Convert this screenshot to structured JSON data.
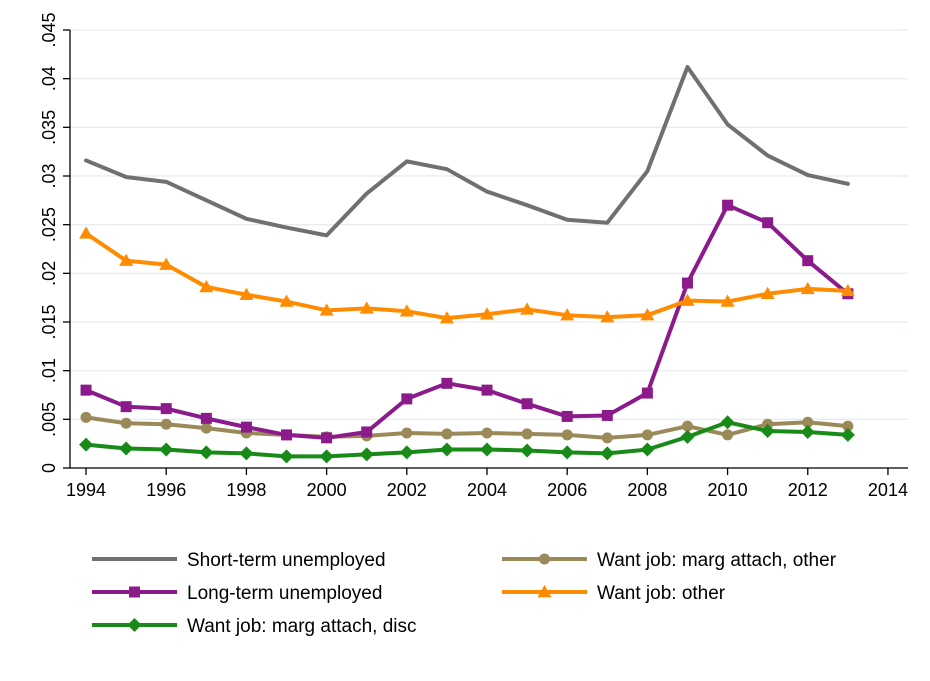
{
  "chart_data": {
    "type": "line",
    "title": "",
    "xlabel": "",
    "ylabel": "",
    "xlim": [
      1993.6,
      2014.5
    ],
    "ylim": [
      0,
      0.045
    ],
    "x_ticks": [
      1994,
      1996,
      1998,
      2000,
      2002,
      2004,
      2006,
      2008,
      2010,
      2012,
      2014
    ],
    "x_tick_labels": [
      "1994",
      "1996",
      "1998",
      "2000",
      "2002",
      "2004",
      "2006",
      "2008",
      "2010",
      "2012",
      "2014"
    ],
    "y_ticks": [
      0,
      0.005,
      0.01,
      0.015,
      0.02,
      0.025,
      0.03,
      0.035,
      0.04,
      0.045
    ],
    "y_tick_labels": [
      "0",
      ".005",
      ".01",
      ".015",
      ".02",
      ".025",
      ".03",
      ".035",
      ".04",
      ".045"
    ],
    "grid": "horizontal",
    "legend_position": "bottom",
    "x": [
      1994,
      1995,
      1996,
      1997,
      1998,
      1999,
      2000,
      2001,
      2002,
      2003,
      2004,
      2005,
      2006,
      2007,
      2008,
      2009,
      2010,
      2011,
      2012,
      2013
    ],
    "series": [
      {
        "name": "Short-term unemployed",
        "color": "#707070",
        "marker": "none",
        "values": [
          0.0316,
          0.0299,
          0.0294,
          0.0275,
          0.0256,
          0.0247,
          0.0239,
          0.0282,
          0.0315,
          0.0307,
          0.0284,
          0.027,
          0.0255,
          0.0252,
          0.0305,
          0.0412,
          0.0353,
          0.0321,
          0.0301,
          0.0292
        ]
      },
      {
        "name": "Long-term unemployed",
        "color": "#8b1a8b",
        "marker": "square",
        "values": [
          0.008,
          0.0063,
          0.0061,
          0.0051,
          0.0042,
          0.0034,
          0.0031,
          0.0037,
          0.0071,
          0.0087,
          0.008,
          0.0066,
          0.0053,
          0.0054,
          0.0077,
          0.019,
          0.027,
          0.0252,
          0.0213,
          0.0179
        ]
      },
      {
        "name": "Want job: marg attach, disc",
        "color": "#188a18",
        "marker": "diamond",
        "values": [
          0.0024,
          0.002,
          0.0019,
          0.0016,
          0.0015,
          0.0012,
          0.0012,
          0.0014,
          0.0016,
          0.0019,
          0.0019,
          0.0018,
          0.0016,
          0.0015,
          0.0019,
          0.0032,
          0.0047,
          0.0038,
          0.0037,
          0.0034
        ]
      },
      {
        "name": "Want job: marg attach, other",
        "color": "#9a8a5a",
        "marker": "circle",
        "values": [
          0.0052,
          0.0046,
          0.0045,
          0.0041,
          0.0036,
          0.0034,
          0.0032,
          0.0033,
          0.0036,
          0.0035,
          0.0036,
          0.0035,
          0.0034,
          0.0031,
          0.0034,
          0.0043,
          0.0034,
          0.0045,
          0.0047,
          0.0043
        ]
      },
      {
        "name": "Want job: other",
        "color": "#ff8c00",
        "marker": "triangle",
        "values": [
          0.0241,
          0.0213,
          0.0209,
          0.0186,
          0.0178,
          0.0171,
          0.0162,
          0.0164,
          0.0161,
          0.0154,
          0.0158,
          0.0163,
          0.0157,
          0.0155,
          0.0157,
          0.0172,
          0.0171,
          0.0179,
          0.0184,
          0.0182
        ]
      }
    ],
    "legend_layout": [
      [
        0,
        3
      ],
      [
        1,
        4
      ],
      [
        2
      ]
    ]
  }
}
